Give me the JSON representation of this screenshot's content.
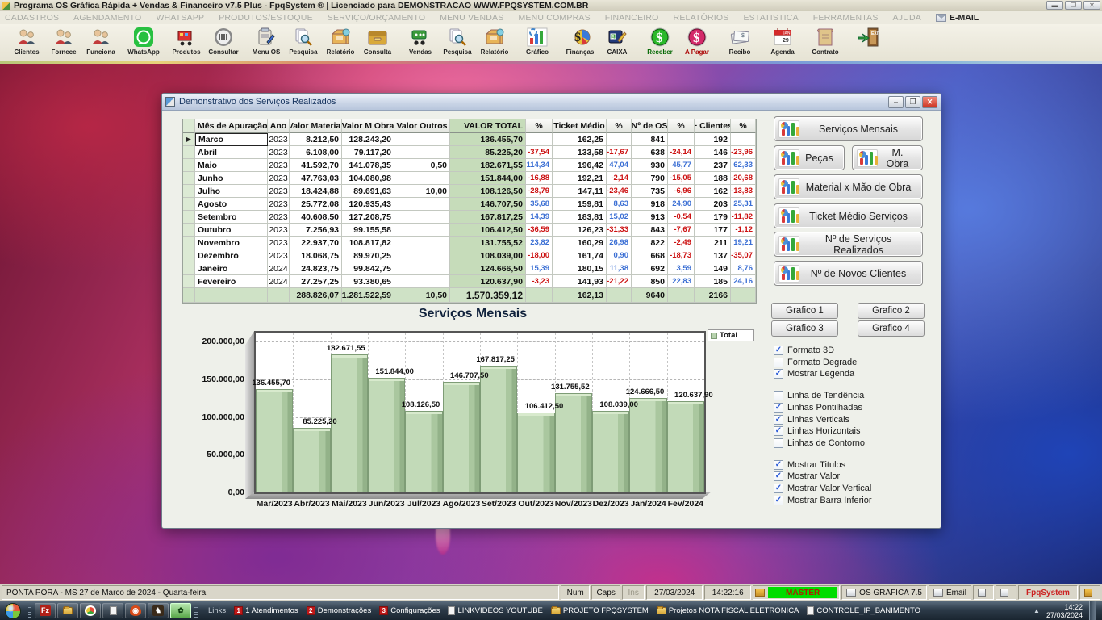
{
  "titlebar": {
    "title": "Programa OS Gráfica Rápida + Vendas & Financeiro v7.5 Plus - FpqSystem ® | Licenciado para  DEMONSTRACAO WWW.FPQSYSTEM.COM.BR",
    "buttons": [
      "–",
      "❐",
      "✕"
    ]
  },
  "menubar": {
    "items": [
      "CADASTROS",
      "AGENDAMENTO",
      "WHATSAPP",
      "PRODUTOS/ESTOQUE",
      "SERVIÇO/ORÇAMENTO",
      "MENU VENDAS",
      "MENU COMPRAS",
      "FINANCEIRO",
      "RELATÓRIOS",
      "ESTATISTICA",
      "FERRAMENTAS",
      "AJUDA"
    ],
    "email_label": "E-MAIL"
  },
  "toolbar": {
    "groups": [
      [
        {
          "label": "Clientes",
          "icon": "people"
        },
        {
          "label": "Fornece",
          "icon": "people"
        },
        {
          "label": "Funciona",
          "icon": "people"
        }
      ],
      [
        {
          "label": "WhatsApp",
          "icon": "whatsapp"
        }
      ],
      [
        {
          "label": "Produtos",
          "icon": "cart"
        },
        {
          "label": "Consultar",
          "icon": "barcode"
        }
      ],
      [
        {
          "label": "Menu OS",
          "icon": "clipboard"
        },
        {
          "label": "Pesquisa",
          "icon": "search"
        },
        {
          "label": "Relatório",
          "icon": "box"
        },
        {
          "label": "Consulta",
          "icon": "drawer"
        }
      ],
      [
        {
          "label": "Vendas",
          "icon": "cartgreen"
        },
        {
          "label": "Pesquisa",
          "icon": "search"
        },
        {
          "label": "Relatório",
          "icon": "box"
        }
      ],
      [
        {
          "label": "Gráfico",
          "icon": "chart"
        }
      ],
      [
        {
          "label": "Finanças",
          "icon": "finance"
        },
        {
          "label": "CAIXA",
          "icon": "book"
        }
      ],
      [
        {
          "label": "Receber",
          "icon": "moneygreen",
          "color": "#006600"
        },
        {
          "label": "A Pagar",
          "icon": "moneyred",
          "color": "#aa0000"
        }
      ],
      [
        {
          "label": "Recibo",
          "icon": "receipt"
        }
      ],
      [
        {
          "label": "Agenda",
          "icon": "calendar"
        }
      ],
      [
        {
          "label": "Contrato",
          "icon": "scroll"
        }
      ],
      [
        {
          "label": "",
          "icon": "exit"
        }
      ]
    ]
  },
  "window": {
    "title": "Demonstrativo dos Serviços Realizados",
    "buttons": [
      "–",
      "❐",
      "✕"
    ],
    "table": {
      "headers": [
        "Mês de Apuração",
        "Ano",
        "Valor Material",
        "Valor M Obra",
        "Valor Outros",
        "VALOR TOTAL",
        "%",
        "Ticket Médio",
        "%",
        "Nº de OS",
        "%",
        "+ Clientes",
        "%"
      ],
      "rows": [
        [
          "Marco",
          "2023",
          "8.212,50",
          "128.243,20",
          "",
          "136.455,70",
          "",
          "162,25",
          "",
          "841",
          "",
          "192",
          ""
        ],
        [
          "Abril",
          "2023",
          "6.108,00",
          "79.117,20",
          "",
          "85.225,20",
          "-37,54",
          "133,58",
          "-17,67",
          "638",
          "-24,14",
          "146",
          "-23,96"
        ],
        [
          "Maio",
          "2023",
          "41.592,70",
          "141.078,35",
          "0,50",
          "182.671,55",
          "114,34",
          "196,42",
          "47,04",
          "930",
          "45,77",
          "237",
          "62,33"
        ],
        [
          "Junho",
          "2023",
          "47.763,03",
          "104.080,98",
          "",
          "151.844,00",
          "-16,88",
          "192,21",
          "-2,14",
          "790",
          "-15,05",
          "188",
          "-20,68"
        ],
        [
          "Julho",
          "2023",
          "18.424,88",
          "89.691,63",
          "10,00",
          "108.126,50",
          "-28,79",
          "147,11",
          "-23,46",
          "735",
          "-6,96",
          "162",
          "-13,83"
        ],
        [
          "Agosto",
          "2023",
          "25.772,08",
          "120.935,43",
          "",
          "146.707,50",
          "35,68",
          "159,81",
          "8,63",
          "918",
          "24,90",
          "203",
          "25,31"
        ],
        [
          "Setembro",
          "2023",
          "40.608,50",
          "127.208,75",
          "",
          "167.817,25",
          "14,39",
          "183,81",
          "15,02",
          "913",
          "-0,54",
          "179",
          "-11,82"
        ],
        [
          "Outubro",
          "2023",
          "7.256,93",
          "99.155,58",
          "",
          "106.412,50",
          "-36,59",
          "126,23",
          "-31,33",
          "843",
          "-7,67",
          "177",
          "-1,12"
        ],
        [
          "Novembro",
          "2023",
          "22.937,70",
          "108.817,82",
          "",
          "131.755,52",
          "23,82",
          "160,29",
          "26,98",
          "822",
          "-2,49",
          "211",
          "19,21"
        ],
        [
          "Dezembro",
          "2023",
          "18.068,75",
          "89.970,25",
          "",
          "108.039,00",
          "-18,00",
          "161,74",
          "0,90",
          "668",
          "-18,73",
          "137",
          "-35,07"
        ],
        [
          "Janeiro",
          "2024",
          "24.823,75",
          "99.842,75",
          "",
          "124.666,50",
          "15,39",
          "180,15",
          "11,38",
          "692",
          "3,59",
          "149",
          "8,76"
        ],
        [
          "Fevereiro",
          "2024",
          "27.257,25",
          "93.380,65",
          "",
          "120.637,90",
          "-3,23",
          "141,93",
          "-21,22",
          "850",
          "22,83",
          "185",
          "24,16"
        ]
      ],
      "totals": [
        "",
        "",
        "288.826,07",
        "1.281.522,59",
        "10,50",
        "1.570.359,12",
        "",
        "162,13",
        "",
        "9640",
        "",
        "2166",
        ""
      ]
    },
    "side_buttons": [
      {
        "label": "Serviços Mensais",
        "wide": true
      },
      {
        "label": "Peças",
        "wide": false
      },
      {
        "label": "M. Obra",
        "wide": false
      },
      {
        "label": "Material x Mão de Obra",
        "wide": true
      },
      {
        "label": "Ticket Médio Serviços",
        "wide": true
      },
      {
        "label": "Nº de Serviços Realizados",
        "wide": true
      },
      {
        "label": "Nº de Novos Clientes",
        "wide": true
      }
    ],
    "grafico_buttons": [
      "Grafico 1",
      "Grafico 2",
      "Grafico 3",
      "Grafico 4"
    ],
    "checkbox_groups": [
      [
        {
          "label": "Formato 3D",
          "checked": true
        },
        {
          "label": "Formato Degrade",
          "checked": false
        },
        {
          "label": "Mostrar Legenda",
          "checked": true
        }
      ],
      [
        {
          "label": "Linha de Tendência",
          "checked": false
        },
        {
          "label": "Linhas Pontilhadas",
          "checked": true
        },
        {
          "label": "Linhas Verticais",
          "checked": true
        },
        {
          "label": "Linhas Horizontais",
          "checked": true
        },
        {
          "label": "Linhas de Contorno",
          "checked": false
        }
      ],
      [
        {
          "label": "Mostrar Titulos",
          "checked": true
        },
        {
          "label": "Mostrar Valor",
          "checked": true
        },
        {
          "label": "Mostrar Valor Vertical",
          "checked": true
        },
        {
          "label": "Mostrar Barra Inferior",
          "checked": true
        }
      ]
    ]
  },
  "chart_data": {
    "type": "bar",
    "title": "Serviços Mensais",
    "legend": [
      "Total"
    ],
    "legend_position": "top-right",
    "categories": [
      "Mar/2023",
      "Abr/2023",
      "Mai/2023",
      "Jun/2023",
      "Jul/2023",
      "Ago/2023",
      "Set/2023",
      "Out/2023",
      "Nov/2023",
      "Dez/2023",
      "Jan/2024",
      "Fev/2024"
    ],
    "values": [
      136455.7,
      85225.2,
      182671.55,
      151844.0,
      108126.5,
      146707.5,
      167817.25,
      106412.5,
      131755.52,
      108039.0,
      124666.5,
      120637.9
    ],
    "value_labels": [
      "136.455,70",
      "85.225,20",
      "182.671,55",
      "151.844,00",
      "108.126,50",
      "146.707,50",
      "167.817,25",
      "106.412,50",
      "131.755,52",
      "108.039,00",
      "124.666,50",
      "120.637,90"
    ],
    "ylim": [
      0,
      215000
    ],
    "yticks": [
      {
        "v": 200000,
        "label": "200.000,00"
      },
      {
        "v": 150000,
        "label": "150.000,00"
      },
      {
        "v": 100000,
        "label": "100.000,00"
      },
      {
        "v": 50000,
        "label": "50.000,00"
      },
      {
        "v": 0,
        "label": "0,00"
      }
    ],
    "grid": true,
    "bar_color": "#b7d2ae"
  },
  "statusbar": {
    "location": "PONTA PORA - MS 27 de Marco de 2024 - Quarta-feira",
    "num": "Num",
    "caps": "Caps",
    "ins": "Ins",
    "date": "27/03/2024",
    "time": "14:22:16",
    "master": "MASTER",
    "system": "OS GRAFICA 7.5",
    "email": "Email",
    "brand": "FpqSystem"
  },
  "taskbar": {
    "links_label": "Links",
    "link_items": [
      {
        "badge": "1",
        "label": "1 Atendimentos",
        "icon": "badge"
      },
      {
        "badge": "2",
        "label": "Demonstrações",
        "icon": "badge"
      },
      {
        "badge": "3",
        "label": "Configurações",
        "icon": "badge"
      },
      {
        "badge": "",
        "label": "LINKVIDEOS YOUTUBE",
        "icon": "page"
      },
      {
        "badge": "",
        "label": "PROJETO FPQSYSTEM",
        "icon": "fold"
      },
      {
        "badge": "",
        "label": "Projetos NOTA FISCAL ELETRONICA",
        "icon": "fold"
      },
      {
        "badge": "",
        "label": "CONTROLE_IP_BANIMENTO",
        "icon": "page"
      }
    ],
    "clock_time": "14:22",
    "clock_date": "27/03/2024"
  },
  "colors": {
    "pct_negative": "#cc1111",
    "pct_positive": "#3b6fd4",
    "valor_total_col": "#c6dcba",
    "totals_row": "#cfe2c6",
    "master_bg": "#00dd00"
  }
}
